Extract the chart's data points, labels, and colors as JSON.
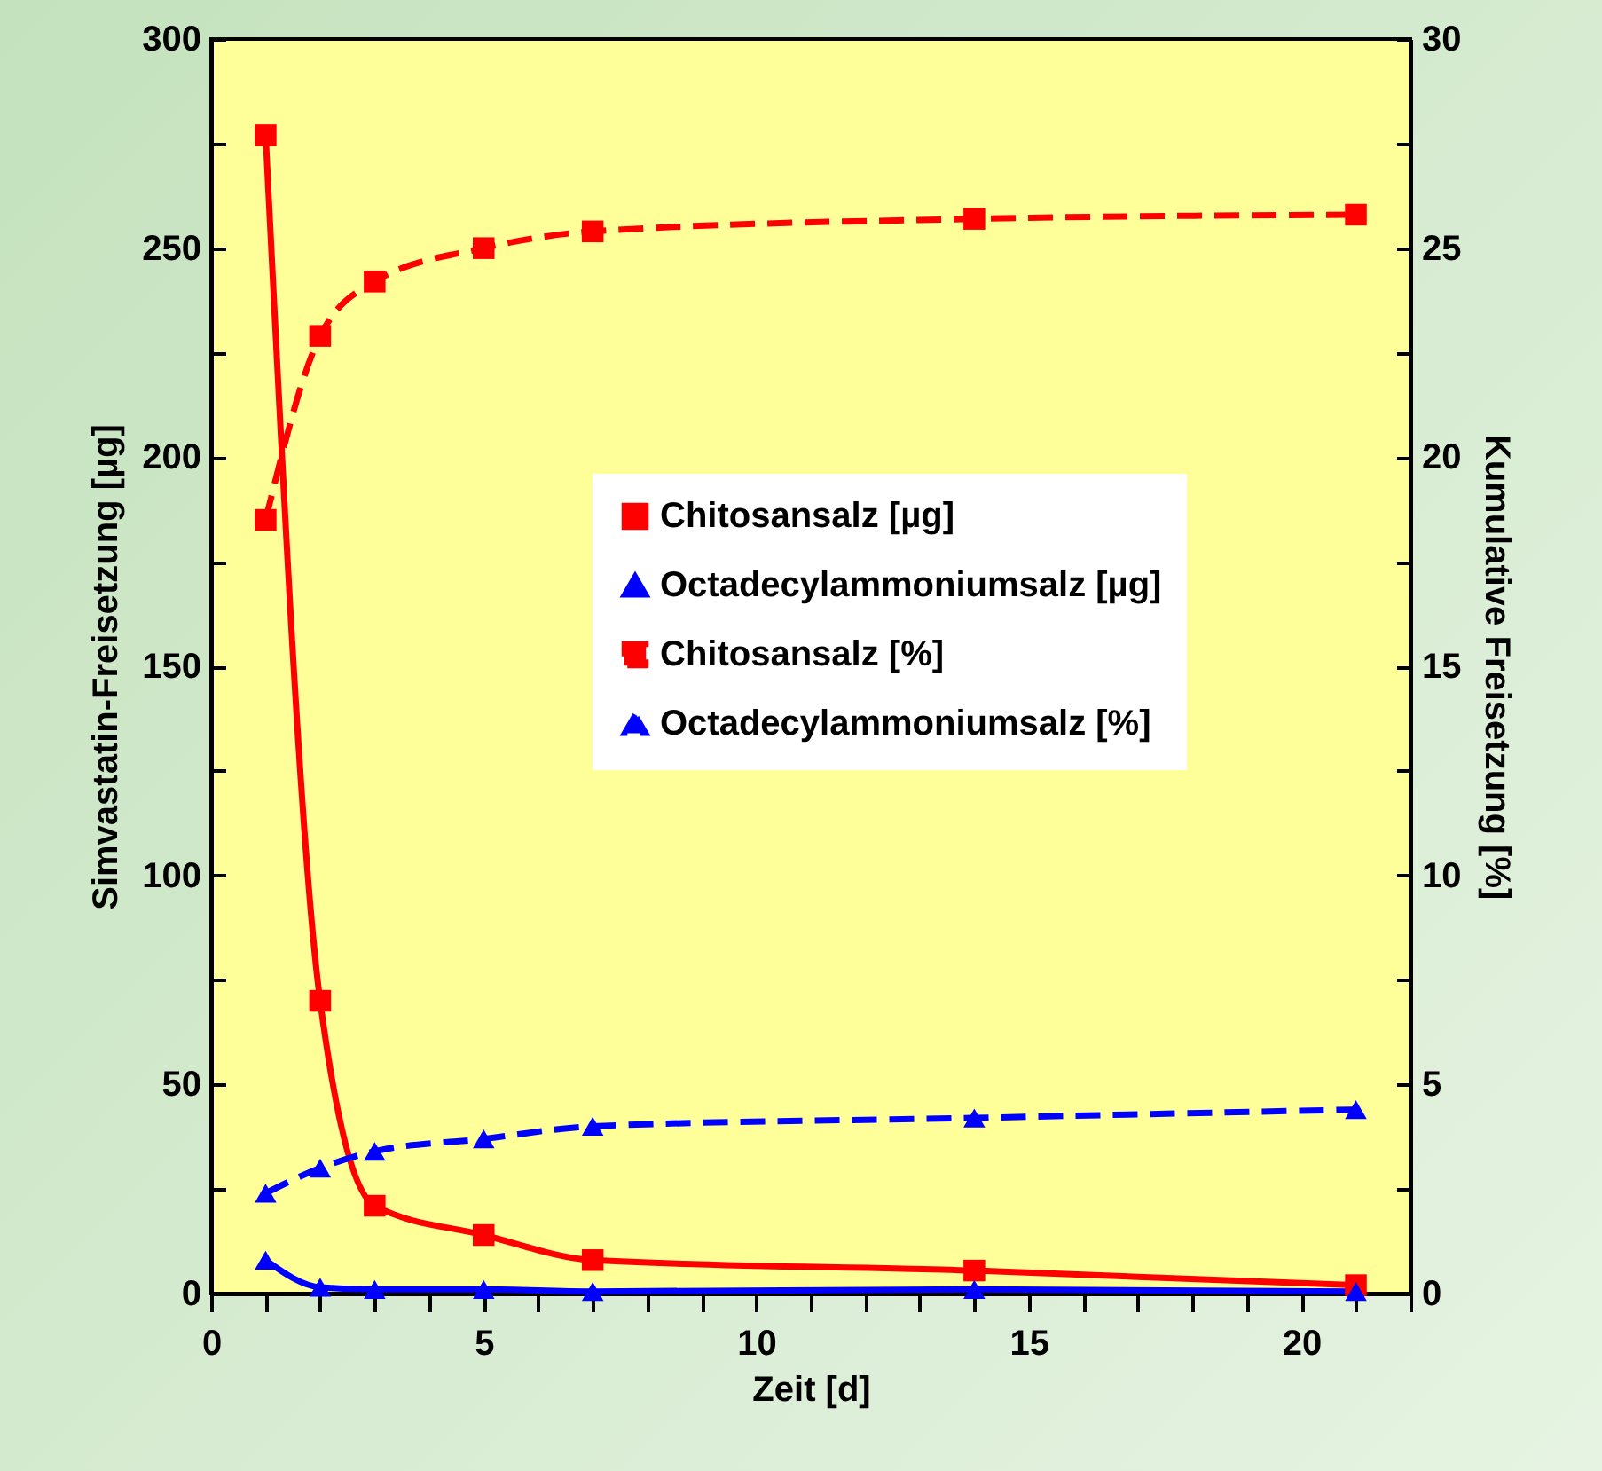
{
  "chart_data": {
    "type": "line",
    "xlabel": "Zeit [d]",
    "ylabel": "Simvastatin-Freisetzung [µg]",
    "y2label": "Kumulative Freisetzung [%]",
    "x": [
      1,
      2,
      3,
      5,
      7,
      14,
      21
    ],
    "xlim": [
      0,
      22
    ],
    "xticks": [
      0,
      {
        "value": 1,
        "label": null
      },
      {
        "value": 2,
        "label": null
      },
      {
        "value": 3,
        "label": null
      },
      {
        "value": 4,
        "label": null
      },
      5,
      {
        "value": 6,
        "label": null
      },
      {
        "value": 7,
        "label": null
      },
      {
        "value": 8,
        "label": null
      },
      {
        "value": 9,
        "label": null
      },
      10,
      {
        "value": 11,
        "label": null
      },
      {
        "value": 12,
        "label": null
      },
      {
        "value": 13,
        "label": null
      },
      {
        "value": 14,
        "label": null
      },
      15,
      {
        "value": 16,
        "label": null
      },
      {
        "value": 17,
        "label": null
      },
      {
        "value": 18,
        "label": null
      },
      {
        "value": 19,
        "label": null
      },
      20,
      {
        "value": 21,
        "label": null
      },
      {
        "value": 22,
        "label": null
      }
    ],
    "ylim": [
      0,
      300
    ],
    "yticks": [
      0,
      {
        "value": 25,
        "label": null
      },
      50,
      {
        "value": 75,
        "label": null
      },
      100,
      {
        "value": 125,
        "label": null
      },
      150,
      {
        "value": 175,
        "label": null
      },
      200,
      {
        "value": 225,
        "label": null
      },
      250,
      {
        "value": 275,
        "label": null
      },
      300
    ],
    "y2lim": [
      0,
      30
    ],
    "y2ticks": [
      0,
      {
        "value": 2.5,
        "label": null
      },
      5,
      {
        "value": 7.5,
        "label": null
      },
      10,
      {
        "value": 12.5,
        "label": null
      },
      15,
      {
        "value": 17.5,
        "label": null
      },
      20,
      {
        "value": 22.5,
        "label": null
      },
      25,
      {
        "value": 27.5,
        "label": null
      },
      30
    ],
    "legend": "right",
    "series": [
      {
        "name": "Chitosansalz [µg]",
        "color": "#ff0000",
        "marker": "square",
        "line_style": "solid",
        "values": [
          277,
          70,
          21,
          14,
          8,
          5.5,
          2
        ]
      },
      {
        "name": "Octadecylammoniumsalz [µg]",
        "color": "#0000ff",
        "marker": "triangle",
        "line_style": "solid",
        "values": [
          8,
          1.5,
          1,
          1,
          0.5,
          1,
          0.5
        ]
      },
      {
        "name": "Chitosansalz [%]",
        "color": "#ff0000",
        "marker": "square",
        "line_style": "dashed",
        "axis": "y2",
        "values": [
          18.5,
          22.9,
          24.2,
          25,
          25.4,
          25.7,
          25.8
        ]
      },
      {
        "name": "Octadecylammoniumsalz [%]",
        "color": "#0000ff",
        "marker": "triangle",
        "line_style": "dashed",
        "axis": "y2",
        "values": [
          2.4,
          3.0,
          3.4,
          3.7,
          4.0,
          4.2,
          4.4
        ]
      }
    ]
  }
}
